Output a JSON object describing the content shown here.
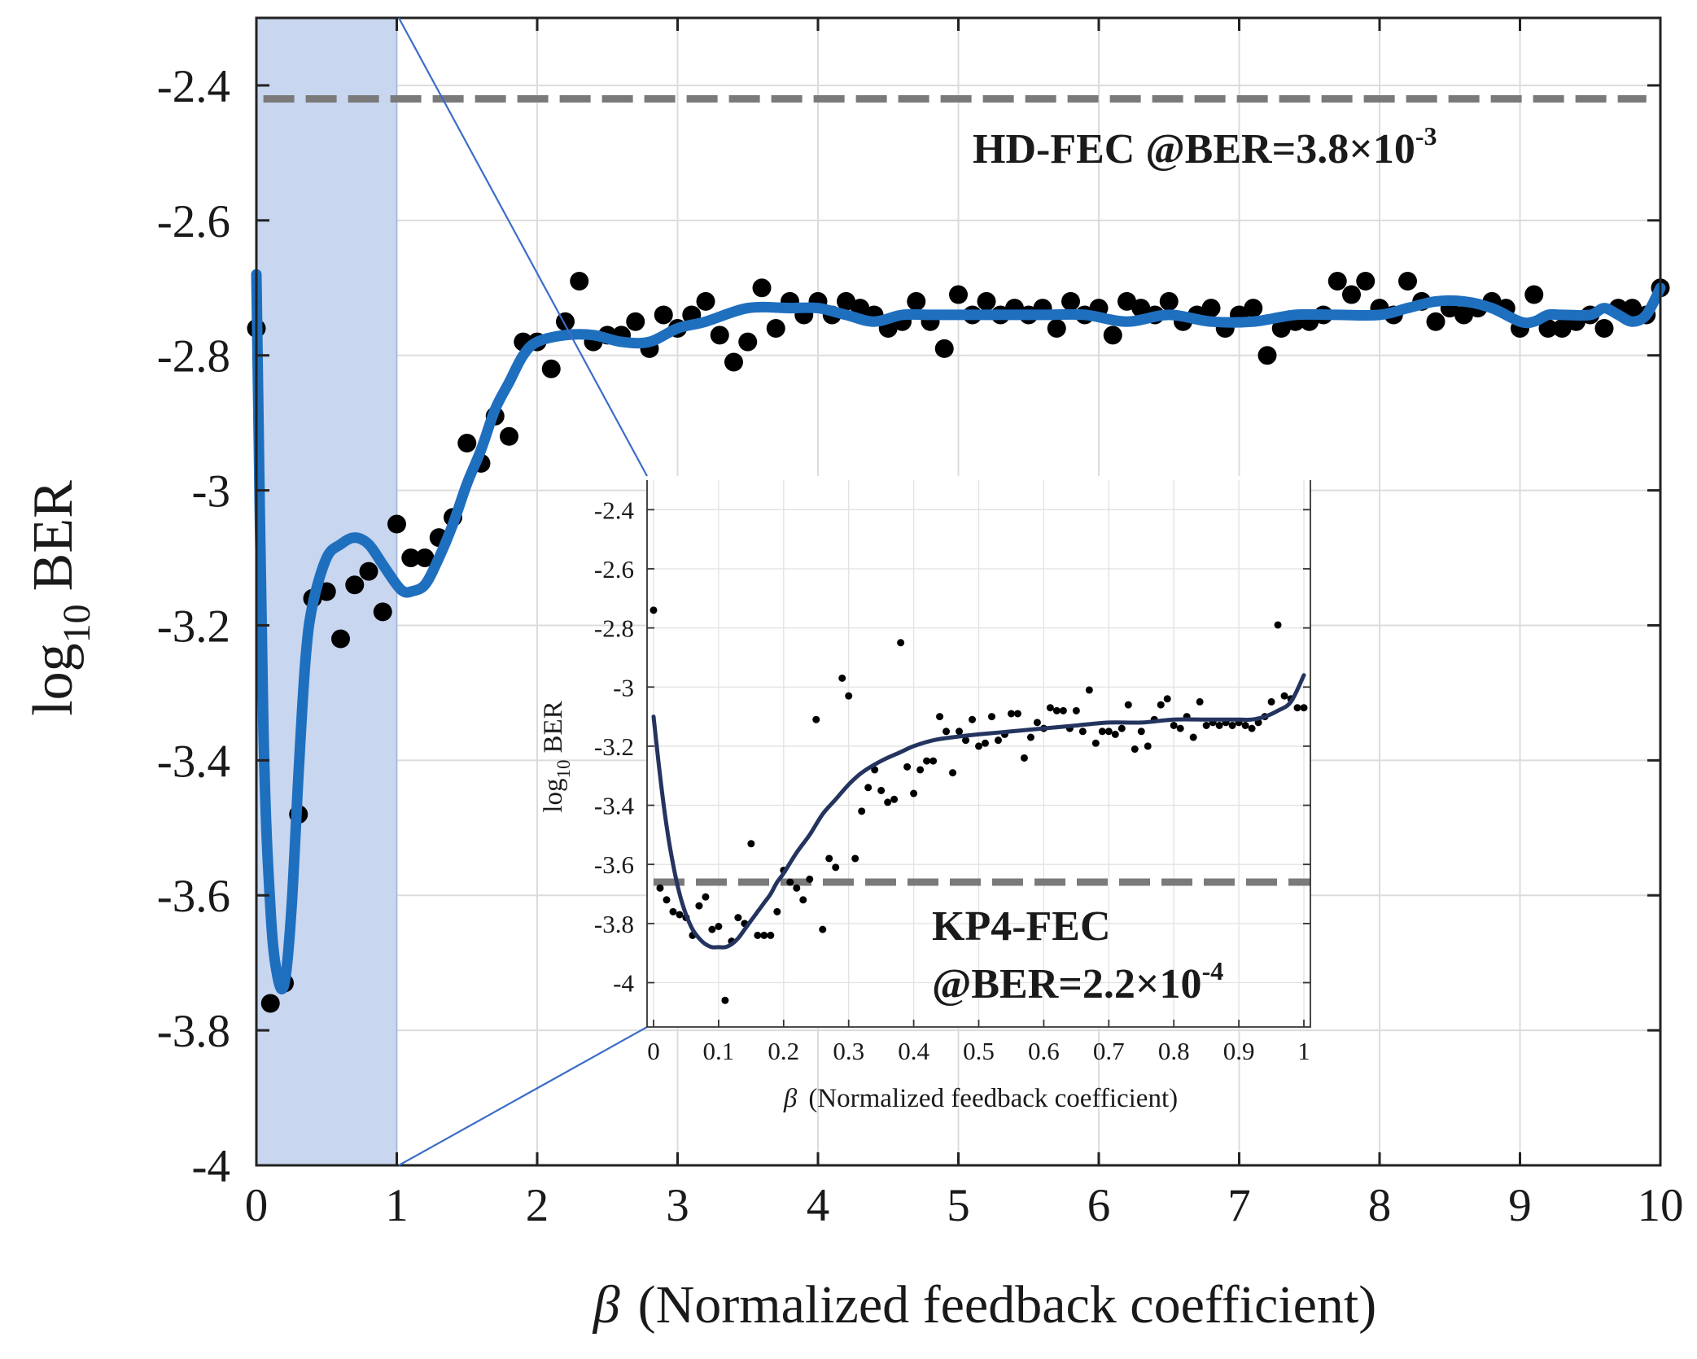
{
  "chart_data": [
    {
      "type": "scatter",
      "name": "main",
      "xlabel_symbol": "β",
      "xlabel_text": "(Normalized feedback coefficient)",
      "ylabel_main": "log",
      "ylabel_sub": "10",
      "ylabel_tail": "BER",
      "xlim": [
        0,
        10
      ],
      "ylim": [
        -4,
        -2.3
      ],
      "xticks": [
        0,
        1,
        2,
        3,
        4,
        5,
        6,
        7,
        8,
        9,
        10
      ],
      "xtick_labels": [
        "0",
        "1",
        "2",
        "3",
        "4",
        "5",
        "6",
        "7",
        "8",
        "9",
        "10"
      ],
      "yticks": [
        -4,
        -3.8,
        -3.6,
        -3.4,
        -3.2,
        -3,
        -2.8,
        -2.6,
        -2.4
      ],
      "ytick_labels": [
        "-4",
        "-3.8",
        "-3.6",
        "-3.4",
        "-3.2",
        "-3",
        "-2.8",
        "-2.6",
        "-2.4"
      ],
      "highlight_region": {
        "x_from": 0,
        "x_to": 1,
        "color": "#c8d6ef"
      },
      "threshold": {
        "y": -2.42,
        "label_main": "HD-FEC @BER=3.8×10",
        "label_exp": "-3",
        "color": "#7a7a7a"
      },
      "points_color": "#000000",
      "curve_color": "#1f6fbf",
      "points": [
        [
          0,
          -2.76
        ],
        [
          0.1,
          -3.76
        ],
        [
          0.2,
          -3.73
        ],
        [
          0.3,
          -3.48
        ],
        [
          0.4,
          -3.16
        ],
        [
          0.5,
          -3.15
        ],
        [
          0.6,
          -3.22
        ],
        [
          0.7,
          -3.14
        ],
        [
          0.8,
          -3.12
        ],
        [
          0.9,
          -3.18
        ],
        [
          1.0,
          -3.05
        ],
        [
          1.1,
          -3.1
        ],
        [
          1.2,
          -3.1
        ],
        [
          1.3,
          -3.07
        ],
        [
          1.4,
          -3.04
        ],
        [
          1.5,
          -2.93
        ],
        [
          1.6,
          -2.96
        ],
        [
          1.7,
          -2.89
        ],
        [
          1.8,
          -2.92
        ],
        [
          1.9,
          -2.78
        ],
        [
          2.0,
          -2.78
        ],
        [
          2.1,
          -2.82
        ],
        [
          2.2,
          -2.75
        ],
        [
          2.3,
          -2.69
        ],
        [
          2.4,
          -2.78
        ],
        [
          2.5,
          -2.77
        ],
        [
          2.6,
          -2.77
        ],
        [
          2.7,
          -2.75
        ],
        [
          2.8,
          -2.79
        ],
        [
          2.9,
          -2.74
        ],
        [
          3.0,
          -2.76
        ],
        [
          3.1,
          -2.74
        ],
        [
          3.2,
          -2.72
        ],
        [
          3.3,
          -2.77
        ],
        [
          3.4,
          -2.81
        ],
        [
          3.5,
          -2.78
        ],
        [
          3.6,
          -2.7
        ],
        [
          3.7,
          -2.76
        ],
        [
          3.8,
          -2.72
        ],
        [
          3.9,
          -2.74
        ],
        [
          4.0,
          -2.72
        ],
        [
          4.1,
          -2.74
        ],
        [
          4.2,
          -2.72
        ],
        [
          4.3,
          -2.73
        ],
        [
          4.4,
          -2.74
        ],
        [
          4.5,
          -2.76
        ],
        [
          4.6,
          -2.75
        ],
        [
          4.7,
          -2.72
        ],
        [
          4.8,
          -2.75
        ],
        [
          4.9,
          -2.79
        ],
        [
          5.0,
          -2.71
        ],
        [
          5.1,
          -2.74
        ],
        [
          5.2,
          -2.72
        ],
        [
          5.3,
          -2.74
        ],
        [
          5.4,
          -2.73
        ],
        [
          5.5,
          -2.74
        ],
        [
          5.6,
          -2.73
        ],
        [
          5.7,
          -2.76
        ],
        [
          5.8,
          -2.72
        ],
        [
          5.9,
          -2.74
        ],
        [
          6.0,
          -2.73
        ],
        [
          6.1,
          -2.77
        ],
        [
          6.2,
          -2.72
        ],
        [
          6.3,
          -2.73
        ],
        [
          6.4,
          -2.74
        ],
        [
          6.5,
          -2.72
        ],
        [
          6.6,
          -2.75
        ],
        [
          6.7,
          -2.74
        ],
        [
          6.8,
          -2.73
        ],
        [
          6.9,
          -2.76
        ],
        [
          7.0,
          -2.74
        ],
        [
          7.1,
          -2.73
        ],
        [
          7.2,
          -2.8
        ],
        [
          7.3,
          -2.76
        ],
        [
          7.4,
          -2.75
        ],
        [
          7.5,
          -2.75
        ],
        [
          7.6,
          -2.74
        ],
        [
          7.7,
          -2.69
        ],
        [
          7.8,
          -2.71
        ],
        [
          7.9,
          -2.69
        ],
        [
          8.0,
          -2.73
        ],
        [
          8.1,
          -2.74
        ],
        [
          8.2,
          -2.69
        ],
        [
          8.3,
          -2.72
        ],
        [
          8.4,
          -2.75
        ],
        [
          8.5,
          -2.73
        ],
        [
          8.6,
          -2.74
        ],
        [
          8.7,
          -2.73
        ],
        [
          8.8,
          -2.72
        ],
        [
          8.9,
          -2.73
        ],
        [
          9.0,
          -2.76
        ],
        [
          9.1,
          -2.71
        ],
        [
          9.2,
          -2.76
        ],
        [
          9.3,
          -2.76
        ],
        [
          9.4,
          -2.75
        ],
        [
          9.5,
          -2.74
        ],
        [
          9.6,
          -2.76
        ],
        [
          9.7,
          -2.73
        ],
        [
          9.8,
          -2.73
        ],
        [
          9.9,
          -2.74
        ],
        [
          10.0,
          -2.7
        ]
      ],
      "fit_curve": [
        [
          0,
          -2.68
        ],
        [
          0.05,
          -3.35
        ],
        [
          0.1,
          -3.62
        ],
        [
          0.15,
          -3.72
        ],
        [
          0.2,
          -3.73
        ],
        [
          0.25,
          -3.62
        ],
        [
          0.3,
          -3.42
        ],
        [
          0.35,
          -3.25
        ],
        [
          0.4,
          -3.17
        ],
        [
          0.5,
          -3.1
        ],
        [
          0.6,
          -3.08
        ],
        [
          0.7,
          -3.07
        ],
        [
          0.8,
          -3.08
        ],
        [
          0.9,
          -3.11
        ],
        [
          1.0,
          -3.14
        ],
        [
          1.05,
          -3.15
        ],
        [
          1.1,
          -3.15
        ],
        [
          1.2,
          -3.14
        ],
        [
          1.3,
          -3.1
        ],
        [
          1.4,
          -3.05
        ],
        [
          1.5,
          -2.99
        ],
        [
          1.6,
          -2.94
        ],
        [
          1.7,
          -2.88
        ],
        [
          1.8,
          -2.84
        ],
        [
          1.9,
          -2.8
        ],
        [
          2.0,
          -2.78
        ],
        [
          2.2,
          -2.77
        ],
        [
          2.4,
          -2.77
        ],
        [
          2.6,
          -2.78
        ],
        [
          2.8,
          -2.78
        ],
        [
          3.0,
          -2.76
        ],
        [
          3.2,
          -2.75
        ],
        [
          3.5,
          -2.73
        ],
        [
          3.8,
          -2.73
        ],
        [
          4.0,
          -2.73
        ],
        [
          4.2,
          -2.74
        ],
        [
          4.4,
          -2.75
        ],
        [
          4.6,
          -2.74
        ],
        [
          4.8,
          -2.74
        ],
        [
          5.0,
          -2.74
        ],
        [
          5.3,
          -2.74
        ],
        [
          5.6,
          -2.74
        ],
        [
          5.9,
          -2.74
        ],
        [
          6.2,
          -2.75
        ],
        [
          6.5,
          -2.74
        ],
        [
          6.8,
          -2.75
        ],
        [
          7.1,
          -2.75
        ],
        [
          7.4,
          -2.74
        ],
        [
          7.7,
          -2.74
        ],
        [
          8.0,
          -2.74
        ],
        [
          8.2,
          -2.73
        ],
        [
          8.4,
          -2.72
        ],
        [
          8.6,
          -2.72
        ],
        [
          8.8,
          -2.73
        ],
        [
          9.0,
          -2.75
        ],
        [
          9.1,
          -2.75
        ],
        [
          9.2,
          -2.74
        ],
        [
          9.3,
          -2.74
        ],
        [
          9.5,
          -2.74
        ],
        [
          9.6,
          -2.73
        ],
        [
          9.7,
          -2.74
        ],
        [
          9.8,
          -2.75
        ],
        [
          9.9,
          -2.74
        ],
        [
          10.0,
          -2.7
        ]
      ]
    },
    {
      "type": "scatter",
      "name": "inset",
      "xlabel_symbol": "β",
      "xlabel_text": "(Normalized feedback coefficient)",
      "ylabel_main": "log",
      "ylabel_sub": "10",
      "ylabel_tail": "BER",
      "xlim": [
        -0.01,
        1.01
      ],
      "ylim": [
        -4.15,
        -2.3
      ],
      "xticks": [
        0,
        0.1,
        0.2,
        0.3,
        0.4,
        0.5,
        0.6,
        0.7,
        0.8,
        0.9,
        1
      ],
      "xtick_labels": [
        "0",
        "0.1",
        "0.2",
        "0.3",
        "0.4",
        "0.5",
        "0.6",
        "0.7",
        "0.8",
        "0.9",
        "1"
      ],
      "yticks": [
        -4,
        -3.8,
        -3.6,
        -3.4,
        -3.2,
        -3,
        -2.8,
        -2.6,
        -2.4
      ],
      "ytick_labels": [
        "-4",
        "-3.8",
        "-3.6",
        "-3.4",
        "-3.2",
        "-3",
        "-2.8",
        "-2.6",
        "-2.4"
      ],
      "threshold": {
        "y": -3.66,
        "label_line1": "KP4-FEC",
        "label_main": "@BER=2.2×10",
        "label_exp": "-4",
        "color": "#7a7a7a"
      },
      "points_color": "#000000",
      "curve_color": "#24345f",
      "points": [
        [
          0,
          -2.74
        ],
        [
          0.01,
          -3.68
        ],
        [
          0.02,
          -3.72
        ],
        [
          0.03,
          -3.76
        ],
        [
          0.04,
          -3.77
        ],
        [
          0.05,
          -3.78
        ],
        [
          0.06,
          -3.84
        ],
        [
          0.07,
          -3.74
        ],
        [
          0.08,
          -3.71
        ],
        [
          0.09,
          -3.82
        ],
        [
          0.1,
          -3.81
        ],
        [
          0.11,
          -4.06
        ],
        [
          0.12,
          -3.86
        ],
        [
          0.13,
          -3.78
        ],
        [
          0.14,
          -3.8
        ],
        [
          0.15,
          -3.53
        ],
        [
          0.16,
          -3.84
        ],
        [
          0.17,
          -3.84
        ],
        [
          0.18,
          -3.84
        ],
        [
          0.19,
          -3.76
        ],
        [
          0.2,
          -3.62
        ],
        [
          0.21,
          -3.66
        ],
        [
          0.22,
          -3.68
        ],
        [
          0.23,
          -3.72
        ],
        [
          0.24,
          -3.65
        ],
        [
          0.25,
          -3.11
        ],
        [
          0.26,
          -3.82
        ],
        [
          0.27,
          -3.58
        ],
        [
          0.28,
          -3.61
        ],
        [
          0.29,
          -2.97
        ],
        [
          0.3,
          -3.03
        ],
        [
          0.31,
          -3.58
        ],
        [
          0.32,
          -3.42
        ],
        [
          0.33,
          -3.34
        ],
        [
          0.34,
          -3.28
        ],
        [
          0.35,
          -3.35
        ],
        [
          0.36,
          -3.39
        ],
        [
          0.37,
          -3.38
        ],
        [
          0.38,
          -2.85
        ],
        [
          0.39,
          -3.27
        ],
        [
          0.4,
          -3.36
        ],
        [
          0.41,
          -3.28
        ],
        [
          0.42,
          -3.25
        ],
        [
          0.43,
          -3.25
        ],
        [
          0.44,
          -3.1
        ],
        [
          0.45,
          -3.15
        ],
        [
          0.46,
          -3.29
        ],
        [
          0.47,
          -3.15
        ],
        [
          0.48,
          -3.18
        ],
        [
          0.49,
          -3.11
        ],
        [
          0.5,
          -3.2
        ],
        [
          0.51,
          -3.19
        ],
        [
          0.52,
          -3.1
        ],
        [
          0.53,
          -3.18
        ],
        [
          0.54,
          -3.16
        ],
        [
          0.55,
          -3.09
        ],
        [
          0.56,
          -3.09
        ],
        [
          0.57,
          -3.24
        ],
        [
          0.58,
          -3.17
        ],
        [
          0.59,
          -3.12
        ],
        [
          0.6,
          -3.14
        ],
        [
          0.61,
          -3.07
        ],
        [
          0.62,
          -3.08
        ],
        [
          0.63,
          -3.08
        ],
        [
          0.64,
          -3.14
        ],
        [
          0.65,
          -3.08
        ],
        [
          0.66,
          -3.15
        ],
        [
          0.67,
          -3.01
        ],
        [
          0.68,
          -3.19
        ],
        [
          0.69,
          -3.15
        ],
        [
          0.7,
          -3.15
        ],
        [
          0.71,
          -3.16
        ],
        [
          0.72,
          -3.14
        ],
        [
          0.73,
          -3.06
        ],
        [
          0.74,
          -3.21
        ],
        [
          0.75,
          -3.15
        ],
        [
          0.76,
          -3.2
        ],
        [
          0.77,
          -3.11
        ],
        [
          0.78,
          -3.06
        ],
        [
          0.79,
          -3.04
        ],
        [
          0.8,
          -3.13
        ],
        [
          0.81,
          -3.14
        ],
        [
          0.82,
          -3.1
        ],
        [
          0.83,
          -3.17
        ],
        [
          0.84,
          -3.05
        ],
        [
          0.85,
          -3.13
        ],
        [
          0.86,
          -3.12
        ],
        [
          0.87,
          -3.13
        ],
        [
          0.88,
          -3.12
        ],
        [
          0.89,
          -3.13
        ],
        [
          0.9,
          -3.12
        ],
        [
          0.91,
          -3.13
        ],
        [
          0.92,
          -3.14
        ],
        [
          0.93,
          -3.12
        ],
        [
          0.94,
          -3.1
        ],
        [
          0.95,
          -3.05
        ],
        [
          0.96,
          -2.79
        ],
        [
          0.97,
          -3.03
        ],
        [
          0.98,
          -3.04
        ],
        [
          0.99,
          -3.07
        ],
        [
          1.0,
          -3.07
        ]
      ],
      "fit_curve": [
        [
          0,
          -3.1
        ],
        [
          0.01,
          -3.3
        ],
        [
          0.02,
          -3.47
        ],
        [
          0.03,
          -3.6
        ],
        [
          0.04,
          -3.7
        ],
        [
          0.05,
          -3.77
        ],
        [
          0.06,
          -3.82
        ],
        [
          0.07,
          -3.85
        ],
        [
          0.08,
          -3.87
        ],
        [
          0.09,
          -3.88
        ],
        [
          0.1,
          -3.88
        ],
        [
          0.11,
          -3.88
        ],
        [
          0.12,
          -3.87
        ],
        [
          0.13,
          -3.85
        ],
        [
          0.14,
          -3.82
        ],
        [
          0.15,
          -3.79
        ],
        [
          0.16,
          -3.76
        ],
        [
          0.17,
          -3.73
        ],
        [
          0.18,
          -3.7
        ],
        [
          0.19,
          -3.66
        ],
        [
          0.2,
          -3.63
        ],
        [
          0.22,
          -3.56
        ],
        [
          0.24,
          -3.5
        ],
        [
          0.26,
          -3.43
        ],
        [
          0.28,
          -3.38
        ],
        [
          0.3,
          -3.33
        ],
        [
          0.32,
          -3.29
        ],
        [
          0.35,
          -3.25
        ],
        [
          0.38,
          -3.22
        ],
        [
          0.4,
          -3.2
        ],
        [
          0.43,
          -3.18
        ],
        [
          0.46,
          -3.17
        ],
        [
          0.5,
          -3.16
        ],
        [
          0.55,
          -3.15
        ],
        [
          0.6,
          -3.14
        ],
        [
          0.65,
          -3.13
        ],
        [
          0.7,
          -3.12
        ],
        [
          0.75,
          -3.12
        ],
        [
          0.8,
          -3.11
        ],
        [
          0.85,
          -3.11
        ],
        [
          0.88,
          -3.11
        ],
        [
          0.9,
          -3.11
        ],
        [
          0.92,
          -3.11
        ],
        [
          0.94,
          -3.1
        ],
        [
          0.96,
          -3.08
        ],
        [
          0.98,
          -3.05
        ],
        [
          1.0,
          -2.96
        ]
      ]
    }
  ]
}
